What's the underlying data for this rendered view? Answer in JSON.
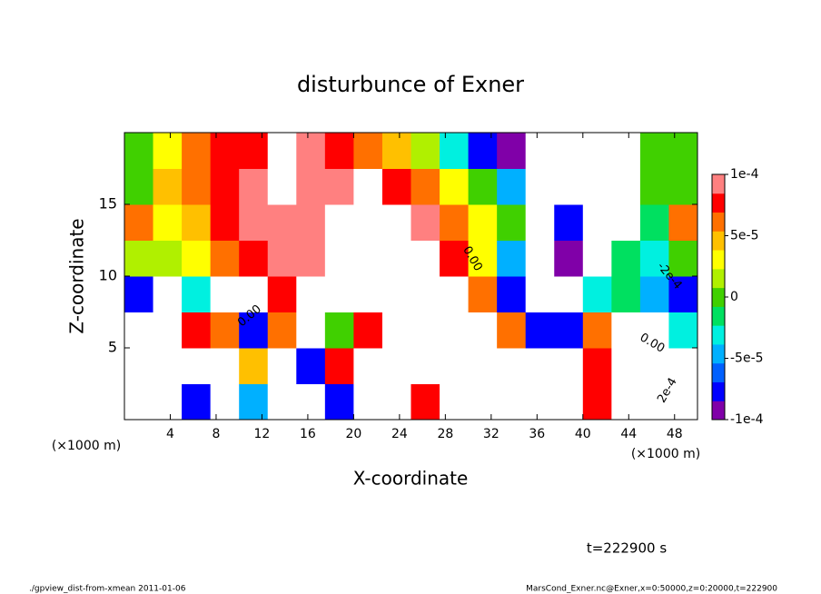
{
  "chart_data": {
    "type": "heatmap",
    "title": "disturbunce of Exner",
    "x_label": "X-coordinate",
    "y_label": "Z-coordinate",
    "x_unit": "(×1000 m)",
    "time_label": "t=222900 s",
    "footer_left": "./gpview_dist-from-xmean  2011-01-06",
    "footer_right": "MarsCond_Exner.nc@Exner,x=0:50000,z=0:20000,t=222900",
    "contour_labels": [
      "0.00",
      "0.00",
      "0.00",
      "-2e-4",
      "2e-4"
    ],
    "xlim": [
      0,
      50
    ],
    "ylim": [
      0,
      20
    ],
    "xticks": [
      4,
      8,
      12,
      16,
      20,
      24,
      28,
      32,
      36,
      40,
      44,
      48
    ],
    "yticks": [
      5,
      10,
      15
    ],
    "z": [
      [
        -0.00015,
        -0.00015,
        -7e-05,
        -0.00015,
        -4e-05,
        0.00015,
        0.00015,
        -8e-05,
        0.00015,
        0.00015,
        8e-05,
        0.00015,
        0.00015,
        0.00015,
        0.00015,
        0.00015,
        8e-05,
        0.00015,
        0.00015,
        0.00015
      ],
      [
        -0.00015,
        -0.00015,
        -0.00015,
        -0.00015,
        5e-05,
        0.00015,
        -8e-05,
        8e-05,
        0.00015,
        0.00015,
        0.00015,
        0.00015,
        0.00015,
        0.00015,
        0.00015,
        0.00015,
        8e-05,
        0.00015,
        0.00015,
        0.00015
      ],
      [
        -0.00015,
        -0.00015,
        8e-05,
        6e-05,
        -8e-05,
        6e-05,
        0.00015,
        0,
        8e-05,
        0.00015,
        0.00015,
        0.00015,
        0.00015,
        6e-05,
        -8e-05,
        -8e-05,
        6e-05,
        0.00015,
        0.00015,
        -3e-05
      ],
      [
        -8e-05,
        -0.00015,
        -3e-05,
        0.00015,
        0.00015,
        8e-05,
        0.00015,
        0.00015,
        0.00015,
        0.00015,
        0.00015,
        0.00015,
        6e-05,
        -7e-05,
        -0.00015,
        -0.00015,
        -3e-05,
        -1e-05,
        -4e-05,
        -7e-05
      ],
      [
        1e-05,
        1e-05,
        3e-05,
        6e-05,
        8e-05,
        0.0001,
        9e-05,
        0.00015,
        0.00015,
        0.00015,
        0.00015,
        8e-05,
        3e-05,
        -4e-05,
        -0.00015,
        -0.0001,
        -0.00015,
        -1e-05,
        -3e-05,
        0
      ],
      [
        6e-05,
        3e-05,
        5e-05,
        8e-05,
        9e-05,
        0.0001,
        9e-05,
        0.00015,
        0.00015,
        0.00015,
        9.5e-05,
        6e-05,
        3e-05,
        0,
        -0.00015,
        -8e-05,
        -0.00015,
        -0.00015,
        -1e-05,
        6e-05
      ],
      [
        0,
        4e-05,
        6e-05,
        8e-05,
        9e-05,
        0.00015,
        9.5e-05,
        9e-05,
        0.00015,
        8e-05,
        6e-05,
        3e-05,
        0,
        -4e-05,
        -0.00015,
        -0.00015,
        -0.00015,
        -0.00015,
        0,
        0
      ],
      [
        0,
        3e-05,
        6e-05,
        8e-05,
        8e-05,
        0.00015,
        9e-05,
        8e-05,
        6e-05,
        4e-05,
        1e-05,
        -3e-05,
        -7e-05,
        -0.0001,
        -0.00015,
        -0.00015,
        -0.00015,
        -0.00015,
        0,
        0
      ]
    ],
    "colorbar": {
      "lim": [
        -0.0001,
        0.0001
      ],
      "ticks": [
        {
          "value": -0.0001,
          "label": "-1e-4"
        },
        {
          "value": -5e-05,
          "label": "-5e-5"
        },
        0,
        {
          "value": 5e-05,
          "label": "5e-5"
        },
        {
          "value": 0.0001,
          "label": "1e-4"
        }
      ],
      "colors": [
        "#8000a8",
        "#0000ff",
        "#0060ff",
        "#00b0ff",
        "#00f0e0",
        "#00e060",
        "#40d000",
        "#b0f000",
        "#ffff00",
        "#ffc000",
        "#ff7000",
        "#ff0000",
        "#ff8080"
      ],
      "out_of_range_color": "#ffffff"
    }
  }
}
